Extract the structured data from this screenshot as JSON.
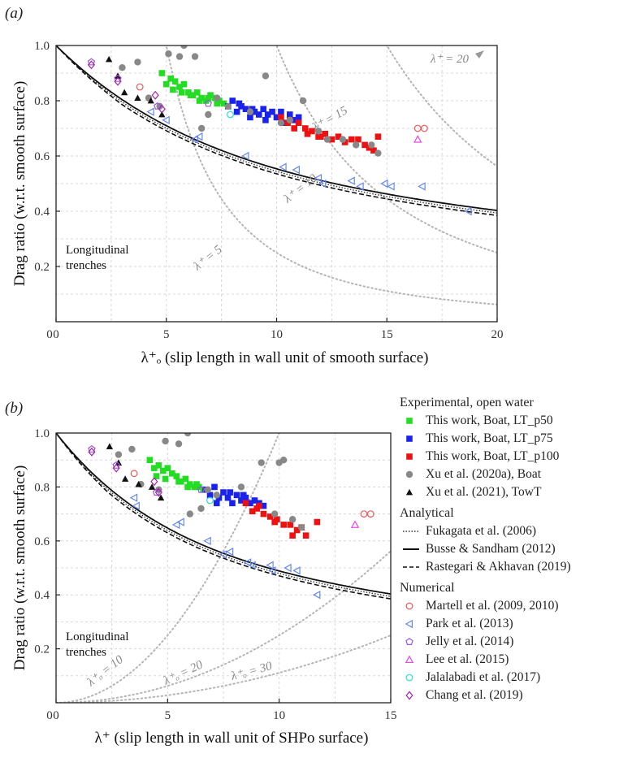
{
  "panel_a": {
    "label": "(a)"
  },
  "panel_b": {
    "label": "(b)"
  },
  "chart_data": [
    {
      "type": "scatter",
      "panel": "(a)",
      "xlabel": "λ⁺ₒ (slip length in wall unit of smooth surface)",
      "ylabel": "Drag ratio (w.r.t. smooth surface)",
      "xlim": [
        0,
        20
      ],
      "ylim": [
        0,
        1.0
      ],
      "xticks": [
        0,
        5,
        10,
        15,
        20
      ],
      "yticks": [
        0.2,
        0.4,
        0.6,
        0.8,
        1.0
      ],
      "grid": true,
      "annotation": "Longitudinal trenches",
      "iso_labels": [
        "λ⁺ = 5",
        "λ⁺ = 10",
        "λ⁺ = 15",
        "λ⁺ = 20"
      ],
      "series": [
        {
          "name": "This work, Boat, LT_p50",
          "color": "#22dd22",
          "marker": "square",
          "x": [
            4.8,
            5.0,
            5.2,
            5.4,
            5.6,
            5.8,
            6.0,
            6.2,
            6.4,
            6.6,
            6.8,
            7.0,
            7.2,
            7.4,
            7.6,
            5.3,
            5.7,
            6.1,
            6.5,
            6.9,
            7.3
          ],
          "y": [
            0.9,
            0.86,
            0.88,
            0.87,
            0.85,
            0.86,
            0.83,
            0.82,
            0.83,
            0.81,
            0.8,
            0.82,
            0.81,
            0.8,
            0.79,
            0.84,
            0.83,
            0.82,
            0.8,
            0.81,
            0.79
          ]
        },
        {
          "name": "This work, Boat, LT_p75",
          "color": "#1a22ee",
          "marker": "square",
          "x": [
            7.8,
            8.0,
            8.2,
            8.4,
            8.6,
            8.8,
            9.0,
            9.2,
            9.4,
            9.6,
            9.8,
            10.0,
            10.2,
            10.4,
            10.6,
            10.8,
            11.0,
            8.3,
            8.9,
            9.5
          ],
          "y": [
            0.78,
            0.8,
            0.76,
            0.78,
            0.77,
            0.74,
            0.76,
            0.75,
            0.77,
            0.75,
            0.76,
            0.74,
            0.76,
            0.72,
            0.75,
            0.73,
            0.74,
            0.79,
            0.77,
            0.73
          ]
        },
        {
          "name": "This work, Boat, LT_p100",
          "color": "#ee1111",
          "marker": "square",
          "x": [
            10.2,
            10.5,
            10.8,
            11.0,
            11.3,
            11.6,
            11.9,
            12.2,
            12.5,
            12.8,
            13.1,
            13.4,
            13.7,
            14.0,
            14.2,
            14.4,
            14.6,
            10.6,
            11.4,
            12.0
          ],
          "y": [
            0.74,
            0.72,
            0.7,
            0.72,
            0.7,
            0.69,
            0.67,
            0.68,
            0.66,
            0.67,
            0.65,
            0.66,
            0.66,
            0.64,
            0.63,
            0.62,
            0.67,
            0.73,
            0.68,
            0.67
          ]
        },
        {
          "name": "Xu et al. (2020a), Boat",
          "color": "#888888",
          "marker": "circle",
          "x": [
            3.0,
            3.7,
            4.2,
            4.7,
            5.1,
            5.6,
            5.8,
            6.3,
            6.6,
            6.9,
            7.3,
            7.8,
            8.8,
            9.5,
            10.2,
            10.6,
            11.2,
            11.9,
            12.3,
            13.0,
            13.6,
            14.3,
            14.6
          ],
          "y": [
            0.92,
            0.94,
            0.81,
            0.78,
            0.97,
            0.96,
            1.0,
            0.96,
            0.7,
            0.75,
            0.81,
            0.78,
            0.76,
            0.89,
            0.72,
            0.73,
            0.8,
            0.69,
            0.66,
            0.66,
            0.64,
            0.64,
            0.61
          ]
        },
        {
          "name": "Xu et al. (2021), TowT",
          "color": "#111111",
          "marker": "triangle-up",
          "x": [
            2.4,
            2.8,
            3.1,
            3.7,
            4.3,
            4.8
          ],
          "y": [
            0.95,
            0.89,
            0.83,
            0.81,
            0.8,
            0.75
          ]
        },
        {
          "name": "Martell et al. (2009, 2010)",
          "color": "#ee5555",
          "marker": "circle-open",
          "x": [
            3.8,
            16.4,
            16.7
          ],
          "y": [
            0.85,
            0.7,
            0.7
          ]
        },
        {
          "name": "Park et al. (2013)",
          "color": "#6688ee",
          "marker": "triangle-left-open",
          "x": [
            4.3,
            5.0,
            6.5,
            6.3,
            8.6,
            10.3,
            10.9,
            11.9,
            12.1,
            13.4,
            13.8,
            14.9,
            15.2,
            16.6,
            18.7
          ],
          "y": [
            0.76,
            0.73,
            0.67,
            0.66,
            0.6,
            0.56,
            0.55,
            0.52,
            0.5,
            0.51,
            0.49,
            0.5,
            0.49,
            0.49,
            0.4
          ]
        },
        {
          "name": "Jelly et al. (2014)",
          "color": "#9955dd",
          "marker": "pentagon-open",
          "x": [
            1.6,
            2.8,
            4.6,
            6.9
          ],
          "y": [
            0.94,
            0.88,
            0.78,
            0.79
          ]
        },
        {
          "name": "Lee et al. (2015)",
          "color": "#ee44ee",
          "marker": "triangle-up-open",
          "x": [
            16.4
          ],
          "y": [
            0.66
          ]
        },
        {
          "name": "Jalalabadi et al. (2017)",
          "color": "#22dddd",
          "marker": "circle-open",
          "x": [
            7.9
          ],
          "y": [
            0.75
          ]
        },
        {
          "name": "Chang et al. (2019)",
          "color": "#aa22aa",
          "marker": "diamond-open",
          "x": [
            1.6,
            2.8,
            4.5,
            4.8
          ],
          "y": [
            0.93,
            0.87,
            0.82,
            0.77
          ]
        }
      ]
    },
    {
      "type": "scatter",
      "panel": "(b)",
      "xlabel": "λ⁺ (slip length in wall unit of SHPo surface)",
      "ylabel": "Drag ratio (w.r.t. smooth surface)",
      "xlim": [
        0,
        15
      ],
      "ylim": [
        0,
        1.0
      ],
      "xticks": [
        0,
        5,
        10,
        15
      ],
      "yticks": [
        0.2,
        0.4,
        0.6,
        0.8,
        1.0
      ],
      "grid": true,
      "annotation": "Longitudinal trenches",
      "iso_labels": [
        "λ⁺ₒ = 10",
        "λ⁺ₒ = 20",
        "λ⁺ₒ = 30"
      ],
      "series": [
        {
          "name": "This work, Boat, LT_p50",
          "color": "#22dd22",
          "marker": "square",
          "x": [
            4.2,
            4.4,
            4.6,
            4.8,
            5.0,
            5.2,
            5.4,
            5.6,
            5.8,
            6.0,
            6.2,
            6.4,
            6.6,
            4.5,
            4.9,
            5.5,
            5.9,
            6.3
          ],
          "y": [
            0.9,
            0.87,
            0.88,
            0.86,
            0.87,
            0.85,
            0.84,
            0.82,
            0.83,
            0.81,
            0.8,
            0.8,
            0.79,
            0.84,
            0.83,
            0.82,
            0.8,
            0.81
          ]
        },
        {
          "name": "This work, Boat, LT_p75",
          "color": "#1a22ee",
          "marker": "square",
          "x": [
            6.7,
            6.9,
            7.1,
            7.3,
            7.5,
            7.7,
            7.9,
            8.1,
            8.3,
            8.5,
            8.7,
            8.9,
            9.1,
            9.3,
            7.2,
            7.8,
            8.4
          ],
          "y": [
            0.79,
            0.77,
            0.8,
            0.76,
            0.78,
            0.76,
            0.74,
            0.77,
            0.75,
            0.76,
            0.74,
            0.75,
            0.74,
            0.73,
            0.74,
            0.78,
            0.77
          ]
        },
        {
          "name": "This work, Boat, LT_p100",
          "color": "#ee1111",
          "marker": "square",
          "x": [
            8.5,
            8.8,
            9.0,
            9.3,
            9.6,
            9.9,
            10.2,
            10.5,
            10.8,
            11.0,
            11.2,
            11.7,
            9.1,
            9.8,
            10.6
          ],
          "y": [
            0.74,
            0.71,
            0.72,
            0.7,
            0.69,
            0.68,
            0.66,
            0.66,
            0.64,
            0.65,
            0.62,
            0.67,
            0.73,
            0.67,
            0.62
          ]
        },
        {
          "name": "Xu et al. (2020a), Boat",
          "color": "#888888",
          "marker": "circle",
          "x": [
            2.8,
            3.4,
            3.8,
            4.6,
            4.9,
            5.5,
            5.9,
            6.0,
            6.5,
            6.8,
            7.2,
            8.3,
            9.2,
            9.8,
            10.0,
            10.2,
            10.6,
            11.0
          ],
          "y": [
            0.92,
            0.94,
            0.81,
            0.79,
            0.97,
            0.96,
            1.0,
            0.7,
            0.72,
            0.79,
            0.77,
            0.8,
            0.89,
            0.7,
            0.89,
            0.9,
            0.68,
            0.65
          ]
        },
        {
          "name": "Xu et al. (2021), TowT",
          "color": "#111111",
          "marker": "triangle-up",
          "x": [
            2.4,
            2.8,
            3.1,
            3.7,
            4.3,
            4.7
          ],
          "y": [
            0.95,
            0.89,
            0.83,
            0.81,
            0.8,
            0.76
          ]
        },
        {
          "name": "Martell et al. (2009, 2010)",
          "color": "#ee5555",
          "marker": "circle-open",
          "x": [
            3.5,
            13.8,
            14.1
          ],
          "y": [
            0.85,
            0.7,
            0.7
          ]
        },
        {
          "name": "Park et al. (2013)",
          "color": "#6688ee",
          "marker": "triangle-left-open",
          "x": [
            3.5,
            3.6,
            5.4,
            5.6,
            6.8,
            7.5,
            7.8,
            8.6,
            8.8,
            9.6,
            9.7,
            10.4,
            10.8,
            11.7
          ],
          "y": [
            0.76,
            0.73,
            0.66,
            0.67,
            0.6,
            0.55,
            0.56,
            0.52,
            0.51,
            0.51,
            0.49,
            0.5,
            0.49,
            0.4
          ]
        },
        {
          "name": "Jelly et al. (2014)",
          "color": "#9955dd",
          "marker": "pentagon-open",
          "x": [
            1.6,
            2.7,
            4.5,
            6.5
          ],
          "y": [
            0.94,
            0.88,
            0.78,
            0.79
          ]
        },
        {
          "name": "Lee et al. (2015)",
          "color": "#ee44ee",
          "marker": "triangle-up-open",
          "x": [
            13.4
          ],
          "y": [
            0.66
          ]
        },
        {
          "name": "Jalalabadi et al. (2017)",
          "color": "#22dddd",
          "marker": "circle-open",
          "x": [
            6.9
          ],
          "y": [
            0.75
          ]
        },
        {
          "name": "Chang et al. (2019)",
          "color": "#aa22aa",
          "marker": "diamond-open",
          "x": [
            1.6,
            2.7,
            4.4,
            4.6
          ],
          "y": [
            0.93,
            0.87,
            0.82,
            0.78
          ]
        }
      ]
    }
  ],
  "legend": {
    "groups": [
      {
        "title": "Experimental, open water",
        "entries": [
          {
            "label": "This work, Boat, LT_p50",
            "marker": "square",
            "color": "#22dd22"
          },
          {
            "label": "This work, Boat, LT_p75",
            "marker": "square",
            "color": "#1a22ee"
          },
          {
            "label": "This work, Boat, LT_p100",
            "marker": "square",
            "color": "#ee1111"
          },
          {
            "label": "Xu et al. (2020a), Boat",
            "marker": "circle",
            "color": "#888888"
          },
          {
            "label": "Xu et al. (2021), TowT",
            "marker": "triangle-up",
            "color": "#111111"
          }
        ]
      },
      {
        "title": "Analytical",
        "entries": [
          {
            "label": "Fukagata et al. (2006)",
            "line": "dotted",
            "color": "#333333"
          },
          {
            "label": "Busse & Sandham (2012)",
            "line": "solid",
            "color": "#111111"
          },
          {
            "label": "Rastegari & Akhavan (2019)",
            "line": "dashed",
            "color": "#111111"
          }
        ]
      },
      {
        "title": "Numerical",
        "entries": [
          {
            "label": "Martell et al. (2009, 2010)",
            "marker": "circle-open",
            "color": "#ee5555"
          },
          {
            "label": "Park et al. (2013)",
            "marker": "triangle-left-open",
            "color": "#6688ee"
          },
          {
            "label": "Jelly et al. (2014)",
            "marker": "pentagon-open",
            "color": "#9955dd"
          },
          {
            "label": "Lee et al. (2015)",
            "marker": "triangle-up-open",
            "color": "#ee44ee"
          },
          {
            "label": "Jalalabadi et al. (2017)",
            "marker": "circle-open",
            "color": "#22dddd"
          },
          {
            "label": "Chang et al. (2019)",
            "marker": "diamond-open",
            "color": "#aa22aa"
          }
        ]
      }
    ]
  }
}
